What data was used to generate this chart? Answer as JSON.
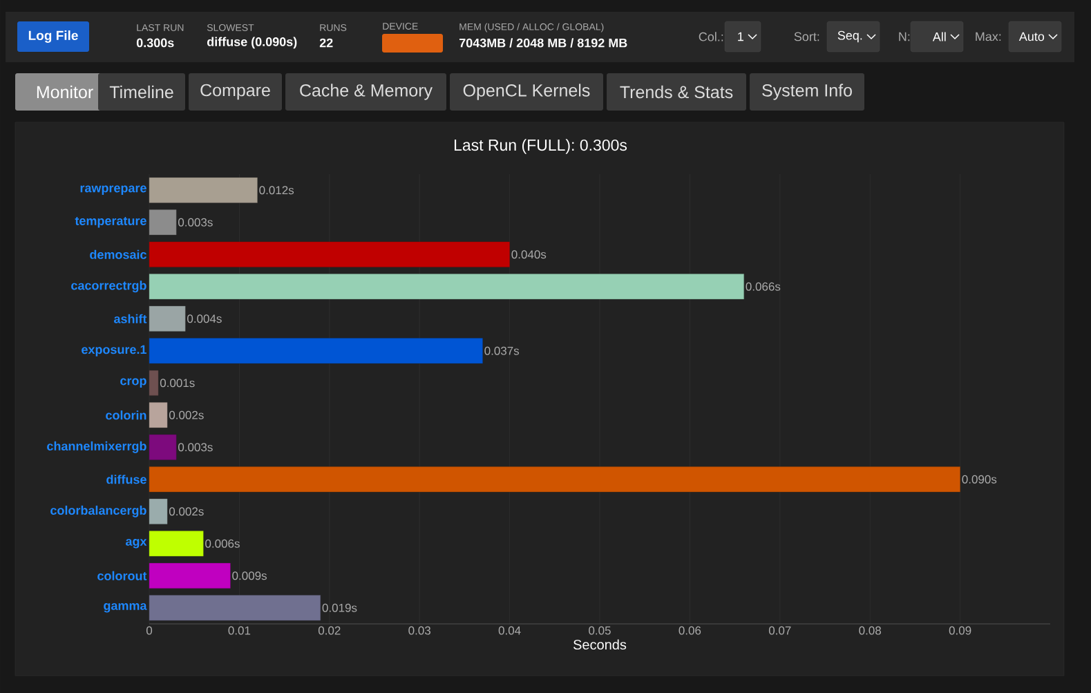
{
  "chart_data": {
    "type": "bar",
    "orientation": "horizontal",
    "title": "Last Run (FULL): 0.300s",
    "xlabel": "Seconds",
    "categories": [
      "rawprepare",
      "temperature",
      "demosaic",
      "cacorrectrgb",
      "ashift",
      "exposure.1",
      "crop",
      "colorin",
      "channelmixerrgb",
      "diffuse",
      "colorbalancergb",
      "agx",
      "colorout",
      "gamma"
    ],
    "values": [
      0.012,
      0.003,
      0.04,
      0.066,
      0.004,
      0.037,
      0.001,
      0.002,
      0.003,
      0.09,
      0.002,
      0.006,
      0.009,
      0.019
    ],
    "value_labels": [
      "0.012s",
      "0.003s",
      "0.040s",
      "0.066s",
      "0.004s",
      "0.037s",
      "0.001s",
      "0.002s",
      "0.003s",
      "0.090s",
      "0.002s",
      "0.006s",
      "0.009s",
      "0.019s"
    ],
    "colors": [
      "#a89f91",
      "#8c8c8c",
      "#c00000",
      "#96d0b4",
      "#9aa5a5",
      "#0055d4",
      "#6e5050",
      "#b8a49c",
      "#7d0a7d",
      "#d05500",
      "#9aacac",
      "#bfff00",
      "#c000c0",
      "#707090"
    ],
    "xlim": [
      0,
      0.1
    ],
    "xticks": [
      0,
      0.01,
      0.02,
      0.03,
      0.04,
      0.05,
      0.06,
      0.07,
      0.08,
      0.09
    ],
    "grid": "x",
    "annotations": [
      "Log File",
      "LAST RUN",
      "0.300s",
      "SLOWEST",
      "diffuse (0.090s)",
      "RUNS",
      "22",
      "DEVICE",
      "MEM (USED / ALLOC / GLOBAL)",
      "7043MB / 2048 MB / 8192 MB",
      "Col.:",
      "1",
      "Sort:",
      "Seq.",
      "N:",
      "All",
      "Max:",
      "Auto",
      "Monitor",
      "Timeline",
      "Compare",
      "Cache & Memory",
      "OpenCL Kernels",
      "Trends & Stats",
      "System Info"
    ]
  }
}
